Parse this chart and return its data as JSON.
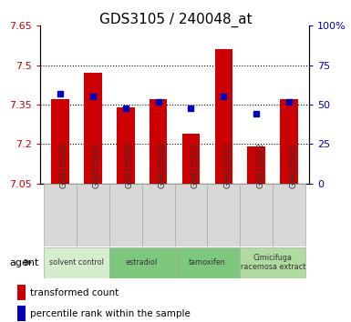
{
  "title": "GDS3105 / 240048_at",
  "samples": [
    "GSM155006",
    "GSM155007",
    "GSM155008",
    "GSM155009",
    "GSM155012",
    "GSM155013",
    "GSM154972",
    "GSM155005"
  ],
  "red_values": [
    7.37,
    7.47,
    7.34,
    7.37,
    7.24,
    7.56,
    7.19,
    7.37
  ],
  "blue_values": [
    57,
    55,
    48,
    52,
    48,
    55,
    44,
    52
  ],
  "ylim_left": [
    7.05,
    7.65
  ],
  "ylim_right": [
    0,
    100
  ],
  "yticks_left": [
    7.05,
    7.2,
    7.35,
    7.5,
    7.65
  ],
  "yticks_right": [
    0,
    25,
    50,
    75,
    100
  ],
  "ytick_labels_right": [
    "0",
    "25",
    "50",
    "75",
    "100%"
  ],
  "hlines": [
    7.2,
    7.35,
    7.5
  ],
  "agent_groups": [
    {
      "label": "solvent control",
      "start": 0,
      "end": 1,
      "color": "#d4edcc"
    },
    {
      "label": "estradiol",
      "start": 2,
      "end": 3,
      "color": "#7ec87e"
    },
    {
      "label": "tamoxifen",
      "start": 4,
      "end": 5,
      "color": "#7ec87e"
    },
    {
      "label": "Cimicifuga\nracemosa extract",
      "start": 6,
      "end": 7,
      "color": "#b0dba0"
    }
  ],
  "bar_color": "#cc0000",
  "dot_color": "#0000bb",
  "bar_width": 0.55,
  "title_fontsize": 11,
  "tick_fontsize": 8,
  "legend_red": "transformed count",
  "legend_blue": "percentile rank within the sample",
  "agent_label": "agent"
}
